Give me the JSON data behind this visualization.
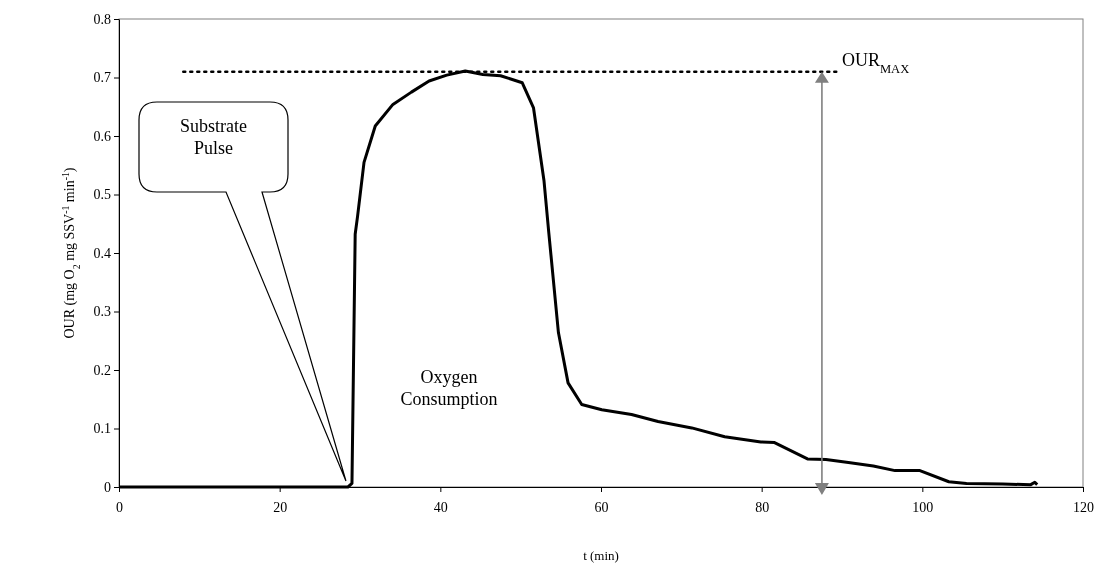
{
  "chart_data": {
    "type": "line",
    "xlabel": "t (min)",
    "ylabel": "OUR (mg O$_{2}$ mg SSV$^{-1}$ min$^{-1}$)",
    "xlim": [
      0,
      120
    ],
    "xticks": [
      0,
      20,
      40,
      60,
      80,
      100,
      120
    ],
    "ylim": [
      0,
      0.8
    ],
    "yticks": [
      0,
      0.1,
      0.2,
      0.3,
      0.4,
      0.5,
      0.6,
      0.7,
      0.8
    ],
    "grid": false,
    "marker": "none",
    "series": [
      {
        "color": "#000000",
        "line_style": "solid",
        "x": [
          0,
          10,
          20,
          28.5,
          29.0,
          29.4,
          29.7,
          30.5,
          31.9,
          34.1,
          36.4,
          38.6,
          40.8,
          43.1,
          45.3,
          47.5,
          50.2,
          51.6,
          52.9,
          53.5,
          54.7,
          55.9,
          57.6,
          60.1,
          63.8,
          67.1,
          71.3,
          75.4,
          79.9,
          81.6,
          85.7,
          88.0,
          90.8,
          93.9,
          96.6,
          99.7,
          103.3,
          105.5,
          110,
          113.5,
          114.0,
          114.3
        ],
        "values": [
          0,
          0,
          0,
          0,
          0.006,
          0.432,
          0.463,
          0.555,
          0.617,
          0.654,
          0.675,
          0.694,
          0.704,
          0.711,
          0.705,
          0.703,
          0.691,
          0.648,
          0.524,
          0.435,
          0.264,
          0.178,
          0.141,
          0.132,
          0.124,
          0.112,
          0.101,
          0.086,
          0.077,
          0.076,
          0.048,
          0.047,
          0.042,
          0.036,
          0.028,
          0.028,
          0.009,
          0.006,
          0.005,
          0.004,
          0.008,
          0.004
        ]
      },
      {
        "color": "#000000",
        "line_style": "dotted",
        "x": [
          8,
          89.4
        ],
        "values": [
          0.71,
          0.71
        ]
      }
    ],
    "annotations": [
      "Substrate\nPulse",
      "Oxygen\nConsumption",
      {
        "text": "OUR$_{MAX}$",
        "x": 87.5,
        "y": 0.71
      }
    ]
  }
}
